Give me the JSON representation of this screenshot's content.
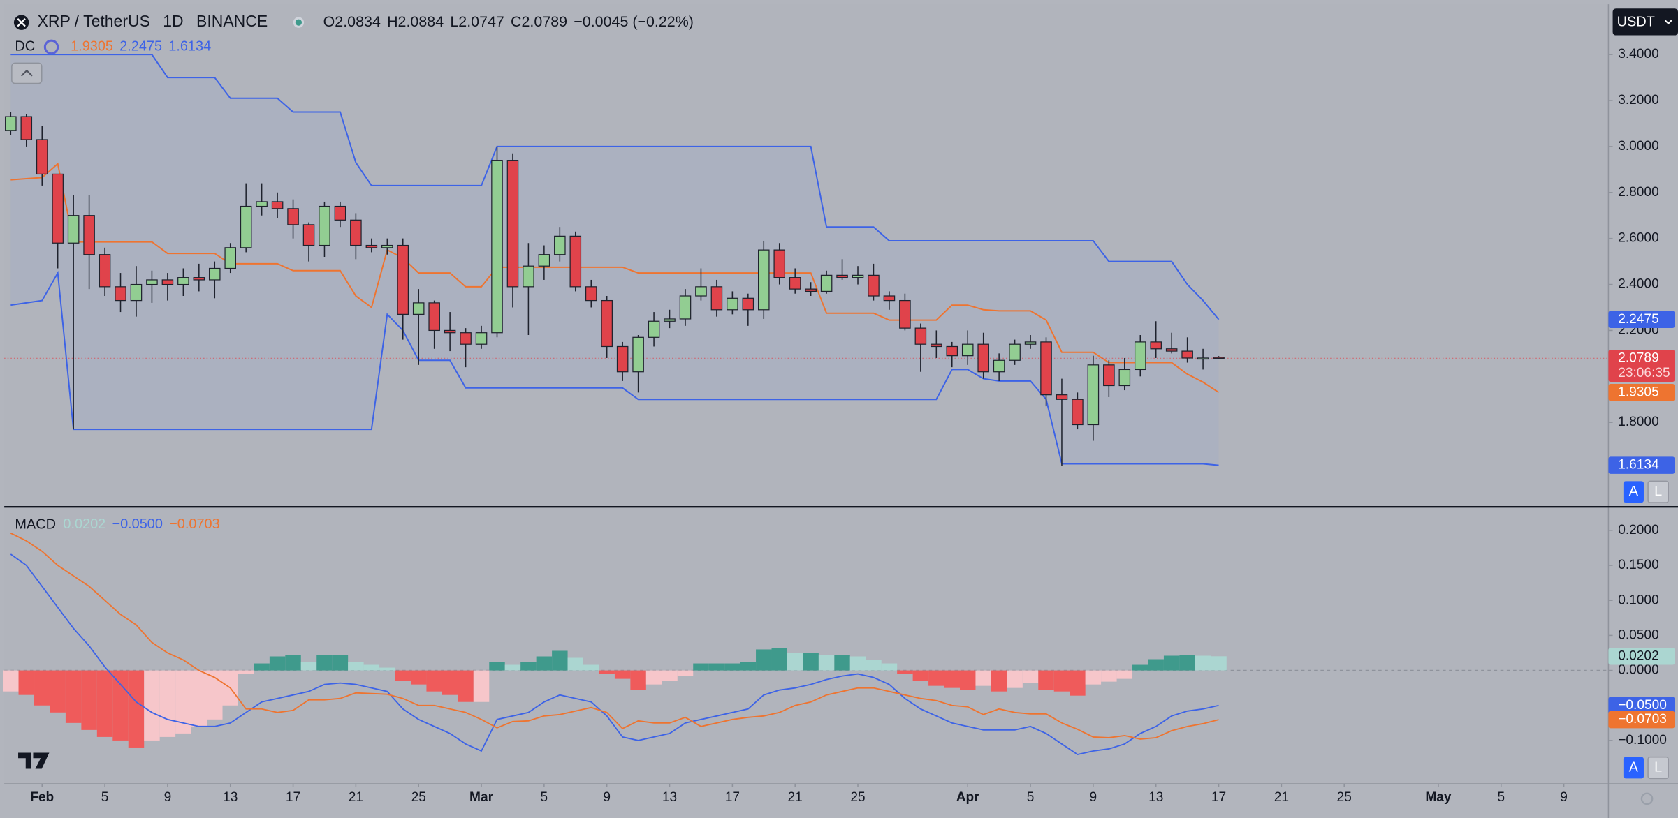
{
  "header": {
    "symbol": "XRP / TetherUS",
    "interval": "1D",
    "exchange": "BINANCE",
    "ohlc_keys": [
      "O",
      "H",
      "L",
      "C"
    ],
    "change": "−0.0045 (−0.22%)"
  },
  "currency": "USDT",
  "countdown": "23:06:35",
  "scale_buttons": [
    "A",
    "L"
  ],
  "chart_data": [
    {
      "type": "candlestick",
      "x": [
        "Jan 30",
        "Jan 31",
        "Feb 1",
        "Feb 2",
        "Feb 3",
        "Feb 4",
        "Feb 5",
        "Feb 6",
        "Feb 7",
        "Feb 8",
        "Feb 9",
        "Feb 10",
        "Feb 11",
        "Feb 12",
        "Feb 13",
        "Feb 14",
        "Feb 15",
        "Feb 16",
        "Feb 17",
        "Feb 18",
        "Feb 19",
        "Feb 20",
        "Feb 21",
        "Feb 22",
        "Feb 23",
        "Feb 24",
        "Feb 25",
        "Feb 26",
        "Feb 27",
        "Feb 28",
        "Mar 1",
        "Mar 2",
        "Mar 3",
        "Mar 4",
        "Mar 5",
        "Mar 6",
        "Mar 7",
        "Mar 8",
        "Mar 9",
        "Mar 10",
        "Mar 11",
        "Mar 12",
        "Mar 13",
        "Mar 14",
        "Mar 15",
        "Mar 16",
        "Mar 17",
        "Mar 18",
        "Mar 19",
        "Mar 20",
        "Mar 21",
        "Mar 22",
        "Mar 23",
        "Mar 24",
        "Mar 25",
        "Mar 26",
        "Mar 27",
        "Mar 28",
        "Mar 29",
        "Mar 30",
        "Mar 31",
        "Apr 1",
        "Apr 2",
        "Apr 3",
        "Apr 4",
        "Apr 5",
        "Apr 6",
        "Apr 7",
        "Apr 8",
        "Apr 9",
        "Apr 10",
        "Apr 11",
        "Apr 12",
        "Apr 13",
        "Apr 14",
        "Apr 15",
        "Apr 16",
        "Apr 17"
      ],
      "open": [
        3.07,
        3.13,
        3.03,
        2.88,
        2.58,
        2.7,
        2.53,
        2.39,
        2.33,
        2.4,
        2.42,
        2.4,
        2.43,
        2.42,
        2.47,
        2.56,
        2.74,
        2.76,
        2.73,
        2.66,
        2.57,
        2.74,
        2.68,
        2.57,
        2.56,
        2.57,
        2.27,
        2.32,
        2.2,
        2.19,
        2.14,
        2.19,
        2.94,
        2.39,
        2.48,
        2.53,
        2.61,
        2.39,
        2.33,
        2.13,
        2.02,
        2.17,
        2.24,
        2.25,
        2.35,
        2.39,
        2.29,
        2.34,
        2.29,
        2.55,
        2.43,
        2.38,
        2.37,
        2.44,
        2.43,
        2.44,
        2.35,
        2.33,
        2.21,
        2.14,
        2.13,
        2.09,
        2.14,
        2.02,
        2.07,
        2.14,
        2.15,
        1.92,
        1.9,
        1.79,
        2.05,
        1.96,
        2.03,
        2.15,
        2.12,
        2.11,
        2.08,
        2.0834
      ],
      "high": [
        3.15,
        3.14,
        3.09,
        2.88,
        2.79,
        2.79,
        2.56,
        2.45,
        2.48,
        2.46,
        2.45,
        2.47,
        2.49,
        2.5,
        2.58,
        2.84,
        2.84,
        2.8,
        2.77,
        2.67,
        2.76,
        2.76,
        2.71,
        2.6,
        2.6,
        2.6,
        2.38,
        2.33,
        2.28,
        2.21,
        2.22,
        3.0,
        2.97,
        2.58,
        2.57,
        2.65,
        2.63,
        2.42,
        2.35,
        2.15,
        2.18,
        2.28,
        2.29,
        2.38,
        2.47,
        2.42,
        2.37,
        2.36,
        2.59,
        2.58,
        2.47,
        2.41,
        2.46,
        2.51,
        2.48,
        2.49,
        2.37,
        2.36,
        2.23,
        2.2,
        2.15,
        2.2,
        2.19,
        2.1,
        2.16,
        2.18,
        2.17,
        1.99,
        1.93,
        2.09,
        2.07,
        2.08,
        2.18,
        2.24,
        2.19,
        2.17,
        2.12,
        2.0884
      ],
      "low": [
        3.05,
        3.0,
        2.83,
        2.47,
        1.77,
        2.38,
        2.35,
        2.28,
        2.26,
        2.32,
        2.33,
        2.35,
        2.37,
        2.34,
        2.45,
        2.54,
        2.7,
        2.69,
        2.6,
        2.5,
        2.52,
        2.65,
        2.51,
        2.54,
        2.53,
        2.16,
        2.05,
        2.12,
        2.11,
        2.04,
        2.12,
        2.17,
        2.3,
        2.18,
        2.42,
        2.5,
        2.37,
        2.3,
        2.08,
        1.98,
        1.93,
        2.13,
        2.21,
        2.22,
        2.33,
        2.26,
        2.27,
        2.22,
        2.25,
        2.4,
        2.36,
        2.35,
        2.36,
        2.42,
        2.4,
        2.33,
        2.29,
        2.2,
        2.02,
        2.08,
        2.04,
        2.05,
        1.99,
        1.98,
        2.05,
        2.12,
        1.87,
        1.61,
        1.77,
        1.72,
        1.91,
        1.94,
        2.0,
        2.08,
        2.1,
        2.06,
        2.03,
        2.0747
      ],
      "close": [
        3.13,
        3.03,
        2.88,
        2.58,
        2.7,
        2.53,
        2.39,
        2.33,
        2.4,
        2.42,
        2.4,
        2.43,
        2.42,
        2.47,
        2.56,
        2.74,
        2.76,
        2.73,
        2.66,
        2.57,
        2.74,
        2.68,
        2.57,
        2.56,
        2.57,
        2.27,
        2.32,
        2.2,
        2.19,
        2.14,
        2.19,
        2.94,
        2.39,
        2.48,
        2.53,
        2.61,
        2.39,
        2.33,
        2.13,
        2.02,
        2.17,
        2.24,
        2.25,
        2.35,
        2.39,
        2.29,
        2.34,
        2.29,
        2.55,
        2.43,
        2.38,
        2.37,
        2.44,
        2.43,
        2.44,
        2.35,
        2.33,
        2.21,
        2.14,
        2.13,
        2.09,
        2.14,
        2.02,
        2.07,
        2.14,
        2.15,
        1.92,
        1.9,
        1.79,
        2.05,
        1.96,
        2.03,
        2.15,
        2.12,
        2.11,
        2.08,
        2.08,
        2.0789
      ],
      "colors": {
        "up": "#92cd92",
        "down": "#e0434b",
        "wick": "#1e222d"
      },
      "overlay": {
        "name": "DC",
        "fill": "#a9b0c2",
        "series": [
          {
            "color": "#ee7430",
            "values": [
              2.855,
              2.86,
              2.865,
              2.925,
              2.585,
              2.585,
              2.585,
              2.585,
              2.585,
              2.585,
              2.535,
              2.535,
              2.535,
              2.535,
              2.49,
              2.49,
              2.49,
              2.49,
              2.46,
              2.46,
              2.46,
              2.46,
              2.35,
              2.3,
              2.55,
              2.515,
              2.45,
              2.45,
              2.45,
              2.39,
              2.39,
              2.475,
              2.475,
              2.475,
              2.475,
              2.475,
              2.475,
              2.475,
              2.475,
              2.475,
              2.45,
              2.45,
              2.45,
              2.45,
              2.45,
              2.45,
              2.45,
              2.45,
              2.45,
              2.45,
              2.45,
              2.45,
              2.275,
              2.275,
              2.275,
              2.275,
              2.245,
              2.245,
              2.245,
              2.245,
              2.31,
              2.31,
              2.29,
              2.285,
              2.285,
              2.285,
              2.245,
              2.105,
              2.105,
              2.105,
              2.06,
              2.06,
              2.06,
              2.06,
              2.06,
              2.01,
              1.975,
              1.9305
            ]
          },
          {
            "color": "#3d63e6",
            "values": [
              3.4,
              3.4,
              3.4,
              3.4,
              3.4,
              3.4,
              3.4,
              3.4,
              3.4,
              3.4,
              3.3,
              3.3,
              3.3,
              3.3,
              3.21,
              3.21,
              3.21,
              3.21,
              3.15,
              3.15,
              3.15,
              3.15,
              2.93,
              2.83,
              2.83,
              2.83,
              2.83,
              2.83,
              2.83,
              2.83,
              2.83,
              3.0,
              3.0,
              3.0,
              3.0,
              3.0,
              3.0,
              3.0,
              3.0,
              3.0,
              3.0,
              3.0,
              3.0,
              3.0,
              3.0,
              3.0,
              3.0,
              3.0,
              3.0,
              3.0,
              3.0,
              3.0,
              2.65,
              2.65,
              2.65,
              2.65,
              2.59,
              2.59,
              2.59,
              2.59,
              2.59,
              2.59,
              2.59,
              2.59,
              2.59,
              2.59,
              2.59,
              2.59,
              2.59,
              2.59,
              2.5,
              2.5,
              2.5,
              2.5,
              2.5,
              2.4,
              2.33,
              2.2475
            ]
          },
          {
            "color": "#3d63e6",
            "values": [
              2.31,
              2.32,
              2.33,
              2.45,
              1.77,
              1.77,
              1.77,
              1.77,
              1.77,
              1.77,
              1.77,
              1.77,
              1.77,
              1.77,
              1.77,
              1.77,
              1.77,
              1.77,
              1.77,
              1.77,
              1.77,
              1.77,
              1.77,
              1.77,
              2.27,
              2.2,
              2.07,
              2.07,
              2.07,
              1.95,
              1.95,
              1.95,
              1.95,
              1.95,
              1.95,
              1.95,
              1.95,
              1.95,
              1.95,
              1.95,
              1.9,
              1.9,
              1.9,
              1.9,
              1.9,
              1.9,
              1.9,
              1.9,
              1.9,
              1.9,
              1.9,
              1.9,
              1.9,
              1.9,
              1.9,
              1.9,
              1.9,
              1.9,
              1.9,
              1.9,
              2.03,
              2.03,
              1.99,
              1.98,
              1.98,
              1.98,
              1.9,
              1.62,
              1.62,
              1.62,
              1.62,
              1.62,
              1.62,
              1.62,
              1.62,
              1.62,
              1.62,
              1.6134
            ]
          }
        ]
      },
      "ylim": [
        1.442,
        3.6
      ],
      "yticks": [
        {
          "value": 3.4,
          "label": "3.4000"
        },
        {
          "value": 3.2,
          "label": "3.2000"
        },
        {
          "value": 3.0,
          "label": "3.0000"
        },
        {
          "value": 2.8,
          "label": "2.8000"
        },
        {
          "value": 2.6,
          "label": "2.6000"
        },
        {
          "value": 2.4,
          "label": "2.4000"
        },
        {
          "value": 2.2,
          "label": "2.2000"
        },
        {
          "value": 1.8,
          "label": "1.8000"
        }
      ],
      "xticks": [
        {
          "value": "Feb 1",
          "label": "Feb"
        },
        {
          "value": "Feb 5",
          "label": "5"
        },
        {
          "value": "Feb 9",
          "label": "9"
        },
        {
          "value": "Feb 13",
          "label": "13"
        },
        {
          "value": "Feb 17",
          "label": "17"
        },
        {
          "value": "Feb 21",
          "label": "21"
        },
        {
          "value": "Feb 25",
          "label": "25"
        },
        {
          "value": "Mar 1",
          "label": "Mar"
        },
        {
          "value": "Mar 5",
          "label": "5"
        },
        {
          "value": "Mar 9",
          "label": "9"
        },
        {
          "value": "Mar 13",
          "label": "13"
        },
        {
          "value": "Mar 17",
          "label": "17"
        },
        {
          "value": "Mar 21",
          "label": "21"
        },
        {
          "value": "Mar 25",
          "label": "25"
        },
        {
          "value": "Apr 1",
          "label": "Apr"
        },
        {
          "value": "Apr 5",
          "label": "5"
        },
        {
          "value": "Apr 9",
          "label": "9"
        },
        {
          "value": "Apr 13",
          "label": "13"
        },
        {
          "value": "Apr 17",
          "label": "17"
        },
        {
          "value": "Apr 21",
          "label": "21"
        },
        {
          "value": "Apr 25",
          "label": "25"
        },
        {
          "value": "May 1",
          "label": "May"
        },
        {
          "value": "May 5",
          "label": "5"
        },
        {
          "value": "May 9",
          "label": "9"
        }
      ]
    },
    {
      "type": "macd",
      "name": "MACD",
      "histogram": {
        "values": [
          -0.03,
          -0.035,
          -0.05,
          -0.06,
          -0.075,
          -0.085,
          -0.095,
          -0.1,
          -0.11,
          -0.1,
          -0.095,
          -0.09,
          -0.08,
          -0.07,
          -0.05,
          -0.005,
          0.01,
          0.02,
          0.022,
          0.012,
          0.022,
          0.022,
          0.012,
          0.008,
          0.004,
          -0.015,
          -0.02,
          -0.03,
          -0.035,
          -0.045,
          -0.045,
          0.012,
          0.008,
          0.012,
          0.02,
          0.028,
          0.018,
          0.008,
          -0.005,
          -0.012,
          -0.028,
          -0.02,
          -0.015,
          -0.008,
          0.01,
          0.01,
          0.01,
          0.012,
          0.03,
          0.032,
          0.025,
          0.025,
          0.022,
          0.022,
          0.02,
          0.015,
          0.01,
          -0.005,
          -0.015,
          -0.022,
          -0.025,
          -0.028,
          -0.022,
          -0.03,
          -0.025,
          -0.018,
          -0.028,
          -0.03,
          -0.036,
          -0.02,
          -0.016,
          -0.012,
          0.008,
          0.016,
          0.021,
          0.022,
          0.021,
          0.0202
        ],
        "colors": {
          "grow_above": "#3f9a8c",
          "fall_above": "#abd6d1",
          "grow_below": "#f6c6ca",
          "fall_below": "#ef5b5b"
        }
      },
      "series": [
        {
          "color": "#3d63e6",
          "last_label": "−0.0500",
          "values": [
            0.166,
            0.15,
            0.12,
            0.09,
            0.06,
            0.035,
            0.005,
            -0.02,
            -0.045,
            -0.06,
            -0.07,
            -0.075,
            -0.08,
            -0.08,
            -0.075,
            -0.06,
            -0.045,
            -0.04,
            -0.035,
            -0.03,
            -0.02,
            -0.018,
            -0.02,
            -0.025,
            -0.03,
            -0.055,
            -0.07,
            -0.08,
            -0.09,
            -0.105,
            -0.115,
            -0.07,
            -0.065,
            -0.06,
            -0.045,
            -0.035,
            -0.04,
            -0.045,
            -0.065,
            -0.095,
            -0.1,
            -0.095,
            -0.09,
            -0.075,
            -0.07,
            -0.065,
            -0.06,
            -0.055,
            -0.035,
            -0.028,
            -0.025,
            -0.02,
            -0.013,
            -0.008,
            -0.005,
            -0.01,
            -0.02,
            -0.04,
            -0.055,
            -0.065,
            -0.075,
            -0.08,
            -0.085,
            -0.085,
            -0.085,
            -0.08,
            -0.09,
            -0.105,
            -0.12,
            -0.115,
            -0.112,
            -0.105,
            -0.09,
            -0.08,
            -0.065,
            -0.058,
            -0.055,
            -0.05
          ]
        },
        {
          "color": "#ee7430",
          "last_label": "−0.0703",
          "values": [
            0.196,
            0.185,
            0.17,
            0.15,
            0.135,
            0.12,
            0.1,
            0.08,
            0.065,
            0.04,
            0.025,
            0.015,
            0.0,
            -0.01,
            -0.025,
            -0.055,
            -0.055,
            -0.06,
            -0.057,
            -0.042,
            -0.042,
            -0.04,
            -0.032,
            -0.033,
            -0.034,
            -0.04,
            -0.05,
            -0.05,
            -0.055,
            -0.06,
            -0.07,
            -0.082,
            -0.073,
            -0.072,
            -0.065,
            -0.063,
            -0.058,
            -0.053,
            -0.06,
            -0.083,
            -0.072,
            -0.075,
            -0.075,
            -0.067,
            -0.08,
            -0.075,
            -0.07,
            -0.067,
            -0.065,
            -0.06,
            -0.05,
            -0.045,
            -0.035,
            -0.03,
            -0.025,
            -0.025,
            -0.03,
            -0.035,
            -0.04,
            -0.043,
            -0.05,
            -0.052,
            -0.063,
            -0.055,
            -0.06,
            -0.062,
            -0.062,
            -0.075,
            -0.084,
            -0.095,
            -0.096,
            -0.093,
            -0.098,
            -0.096,
            -0.086,
            -0.08,
            -0.076,
            -0.0703
          ]
        }
      ],
      "ylim": [
        -0.1603,
        0.2305
      ],
      "yticks": [
        {
          "value": 0.2,
          "label": "0.2000"
        },
        {
          "value": 0.15,
          "label": "0.1500"
        },
        {
          "value": 0.1,
          "label": "0.1000"
        },
        {
          "value": 0.05,
          "label": "0.0500"
        },
        {
          "value": 0,
          "label": "0.0000"
        },
        {
          "value": -0.1,
          "label": "−0.1000"
        }
      ]
    }
  ]
}
